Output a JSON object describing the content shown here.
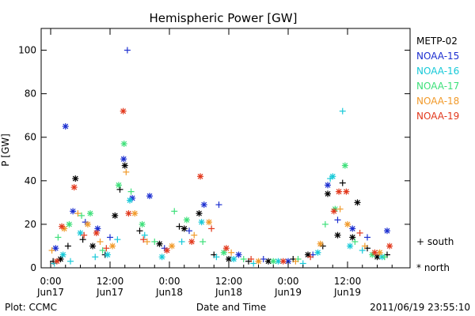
{
  "chart_data": {
    "type": "scatter",
    "title": "Hemispheric Power [GW]",
    "ylabel": "P [GW]",
    "xlabel": "Date and Time",
    "ylim": [
      0,
      110
    ],
    "xlim": [
      "2011-06-17 00:00",
      "2011-06-19 21:00"
    ],
    "yticks": [
      0,
      20,
      40,
      60,
      80,
      100
    ],
    "xticks": [
      {
        "line1": "0:00",
        "line2": "Jun17",
        "t": "2011-06-17 00:00"
      },
      {
        "line1": "12:00",
        "line2": "Jun17",
        "t": "2011-06-17 12:00"
      },
      {
        "line1": "0:00",
        "line2": "Jun18",
        "t": "2011-06-18 00:00"
      },
      {
        "line1": "12:00",
        "line2": "Jun18",
        "t": "2011-06-18 12:00"
      },
      {
        "line1": "0:00",
        "line2": "Jun19",
        "t": "2011-06-19 00:00"
      },
      {
        "line1": "12:00",
        "line2": "Jun19",
        "t": "2011-06-19 12:00"
      }
    ],
    "legend_placement": "right",
    "marker_legend": {
      "south": "+ south",
      "north": "* north"
    },
    "footer_left": "Plot: CCMC",
    "footer_right": "2011/06/19 23:55:10",
    "series": [
      {
        "name": "METP-02",
        "color": "#000000",
        "points": [
          {
            "t": "2011-06-17 00:30",
            "y": 3,
            "m": "+"
          },
          {
            "t": "2011-06-17 02:00",
            "y": 4,
            "m": "*"
          },
          {
            "t": "2011-06-17 03:30",
            "y": 10,
            "m": "+"
          },
          {
            "t": "2011-06-17 05:00",
            "y": 41,
            "m": "*"
          },
          {
            "t": "2011-06-17 06:30",
            "y": 13,
            "m": "+"
          },
          {
            "t": "2011-06-17 08:30",
            "y": 10,
            "m": "*"
          },
          {
            "t": "2011-06-17 11:00",
            "y": 6,
            "m": "+"
          },
          {
            "t": "2011-06-17 13:00",
            "y": 24,
            "m": "*"
          },
          {
            "t": "2011-06-17 14:00",
            "y": 36,
            "m": "+"
          },
          {
            "t": "2011-06-17 15:00",
            "y": 47,
            "m": "*"
          },
          {
            "t": "2011-06-17 18:00",
            "y": 17,
            "m": "+"
          },
          {
            "t": "2011-06-17 22:00",
            "y": 11,
            "m": "*"
          },
          {
            "t": "2011-06-18 02:00",
            "y": 19,
            "m": "+"
          },
          {
            "t": "2011-06-18 03:00",
            "y": 18,
            "m": "*"
          },
          {
            "t": "2011-06-18 06:00",
            "y": 25,
            "m": "*"
          },
          {
            "t": "2011-06-18 09:00",
            "y": 6,
            "m": "+"
          },
          {
            "t": "2011-06-18 12:00",
            "y": 4,
            "m": "*"
          },
          {
            "t": "2011-06-18 16:00",
            "y": 3,
            "m": "+"
          },
          {
            "t": "2011-06-18 20:00",
            "y": 3,
            "m": "*"
          },
          {
            "t": "2011-06-19 01:00",
            "y": 4,
            "m": "+"
          },
          {
            "t": "2011-06-19 04:00",
            "y": 6,
            "m": "*"
          },
          {
            "t": "2011-06-19 07:00",
            "y": 10,
            "m": "+"
          },
          {
            "t": "2011-06-19 08:00",
            "y": 34,
            "m": "*"
          },
          {
            "t": "2011-06-19 10:00",
            "y": 15,
            "m": "*"
          },
          {
            "t": "2011-06-19 11:00",
            "y": 39,
            "m": "+"
          },
          {
            "t": "2011-06-19 13:00",
            "y": 14,
            "m": "*"
          },
          {
            "t": "2011-06-19 14:00",
            "y": 30,
            "m": "*"
          },
          {
            "t": "2011-06-19 16:00",
            "y": 9,
            "m": "+"
          },
          {
            "t": "2011-06-19 18:00",
            "y": 5,
            "m": "*"
          },
          {
            "t": "2011-06-19 20:00",
            "y": 6,
            "m": "+"
          }
        ]
      },
      {
        "name": "NOAA-15",
        "color": "#1c2fd0",
        "points": [
          {
            "t": "2011-06-17 01:00",
            "y": 9,
            "m": "*"
          },
          {
            "t": "2011-06-17 03:00",
            "y": 65,
            "m": "*"
          },
          {
            "t": "2011-06-17 04:30",
            "y": 26,
            "m": "*"
          },
          {
            "t": "2011-06-17 07:00",
            "y": 21,
            "m": "+"
          },
          {
            "t": "2011-06-17 09:30",
            "y": 18,
            "m": "*"
          },
          {
            "t": "2011-06-17 12:00",
            "y": 14,
            "m": "+"
          },
          {
            "t": "2011-06-17 14:45",
            "y": 50,
            "m": "*"
          },
          {
            "t": "2011-06-17 15:30",
            "y": 100,
            "m": "+"
          },
          {
            "t": "2011-06-17 16:30",
            "y": 32,
            "m": "*"
          },
          {
            "t": "2011-06-17 20:00",
            "y": 33,
            "m": "*"
          },
          {
            "t": "2011-06-17 23:00",
            "y": 9,
            "m": "+"
          },
          {
            "t": "2011-06-18 04:00",
            "y": 17,
            "m": "+"
          },
          {
            "t": "2011-06-18 07:00",
            "y": 29,
            "m": "*"
          },
          {
            "t": "2011-06-18 10:00",
            "y": 29,
            "m": "+"
          },
          {
            "t": "2011-06-18 14:00",
            "y": 6,
            "m": "*"
          },
          {
            "t": "2011-06-18 19:00",
            "y": 4,
            "m": "+"
          },
          {
            "t": "2011-06-19 00:00",
            "y": 3,
            "m": "*"
          },
          {
            "t": "2011-06-19 05:00",
            "y": 6,
            "m": "+"
          },
          {
            "t": "2011-06-19 08:00",
            "y": 38,
            "m": "*"
          },
          {
            "t": "2011-06-19 10:00",
            "y": 22,
            "m": "+"
          },
          {
            "t": "2011-06-19 13:00",
            "y": 18,
            "m": "*"
          },
          {
            "t": "2011-06-19 16:00",
            "y": 14,
            "m": "+"
          },
          {
            "t": "2011-06-19 20:00",
            "y": 17,
            "m": "*"
          }
        ]
      },
      {
        "name": "NOAA-16",
        "color": "#17c9d8",
        "points": [
          {
            "t": "2011-06-17 00:45",
            "y": 2,
            "m": "+"
          },
          {
            "t": "2011-06-17 02:30",
            "y": 6,
            "m": "*"
          },
          {
            "t": "2011-06-17 04:00",
            "y": 3,
            "m": "+"
          },
          {
            "t": "2011-06-17 06:00",
            "y": 16,
            "m": "*"
          },
          {
            "t": "2011-06-17 09:00",
            "y": 5,
            "m": "+"
          },
          {
            "t": "2011-06-17 11:30",
            "y": 6,
            "m": "*"
          },
          {
            "t": "2011-06-17 13:30",
            "y": 13,
            "m": "+"
          },
          {
            "t": "2011-06-17 16:00",
            "y": 31,
            "m": "*"
          },
          {
            "t": "2011-06-17 19:00",
            "y": 15,
            "m": "+"
          },
          {
            "t": "2011-06-17 22:30",
            "y": 5,
            "m": "*"
          },
          {
            "t": "2011-06-18 02:30",
            "y": 12,
            "m": "+"
          },
          {
            "t": "2011-06-18 06:30",
            "y": 21,
            "m": "*"
          },
          {
            "t": "2011-06-18 09:30",
            "y": 5,
            "m": "+"
          },
          {
            "t": "2011-06-18 13:00",
            "y": 4,
            "m": "*"
          },
          {
            "t": "2011-06-18 17:00",
            "y": 2,
            "m": "+"
          },
          {
            "t": "2011-06-18 22:00",
            "y": 3,
            "m": "*"
          },
          {
            "t": "2011-06-19 03:00",
            "y": 2,
            "m": "+"
          },
          {
            "t": "2011-06-19 06:00",
            "y": 7,
            "m": "*"
          },
          {
            "t": "2011-06-19 08:30",
            "y": 41,
            "m": "+"
          },
          {
            "t": "2011-06-19 09:00",
            "y": 42,
            "m": "*"
          },
          {
            "t": "2011-06-19 11:00",
            "y": 72,
            "m": "+"
          },
          {
            "t": "2011-06-19 12:30",
            "y": 10,
            "m": "*"
          },
          {
            "t": "2011-06-19 15:00",
            "y": 8,
            "m": "+"
          },
          {
            "t": "2011-06-19 19:00",
            "y": 5,
            "m": "*"
          }
        ]
      },
      {
        "name": "NOAA-17",
        "color": "#3ee07a",
        "points": [
          {
            "t": "2011-06-17 01:30",
            "y": 14,
            "m": "+"
          },
          {
            "t": "2011-06-17 03:45",
            "y": 20,
            "m": "*"
          },
          {
            "t": "2011-06-17 06:15",
            "y": 24,
            "m": "+"
          },
          {
            "t": "2011-06-17 08:00",
            "y": 25,
            "m": "*"
          },
          {
            "t": "2011-06-17 10:30",
            "y": 8,
            "m": "+"
          },
          {
            "t": "2011-06-17 13:45",
            "y": 38,
            "m": "*"
          },
          {
            "t": "2011-06-17 14:50",
            "y": 57,
            "m": "*"
          },
          {
            "t": "2011-06-17 16:15",
            "y": 35,
            "m": "+"
          },
          {
            "t": "2011-06-17 18:30",
            "y": 20,
            "m": "*"
          },
          {
            "t": "2011-06-17 21:00",
            "y": 12,
            "m": "+"
          },
          {
            "t": "2011-06-18 01:00",
            "y": 26,
            "m": "+"
          },
          {
            "t": "2011-06-18 03:30",
            "y": 22,
            "m": "*"
          },
          {
            "t": "2011-06-18 06:45",
            "y": 12,
            "m": "+"
          },
          {
            "t": "2011-06-18 11:00",
            "y": 7,
            "m": "*"
          },
          {
            "t": "2011-06-18 15:00",
            "y": 4,
            "m": "+"
          },
          {
            "t": "2011-06-18 21:00",
            "y": 3,
            "m": "*"
          },
          {
            "t": "2011-06-19 02:00",
            "y": 4,
            "m": "+"
          },
          {
            "t": "2011-06-19 07:30",
            "y": 20,
            "m": "+"
          },
          {
            "t": "2011-06-19 09:30",
            "y": 27,
            "m": "*"
          },
          {
            "t": "2011-06-19 11:30",
            "y": 47,
            "m": "*"
          },
          {
            "t": "2011-06-19 13:30",
            "y": 12,
            "m": "+"
          },
          {
            "t": "2011-06-19 17:00",
            "y": 6,
            "m": "*"
          },
          {
            "t": "2011-06-19 19:30",
            "y": 5,
            "m": "+"
          }
        ]
      },
      {
        "name": "NOAA-18",
        "color": "#f19a2a",
        "points": [
          {
            "t": "2011-06-17 00:15",
            "y": 8,
            "m": "+"
          },
          {
            "t": "2011-06-17 02:45",
            "y": 18,
            "m": "*"
          },
          {
            "t": "2011-06-17 05:30",
            "y": 25,
            "m": "+"
          },
          {
            "t": "2011-06-17 07:30",
            "y": 20,
            "m": "*"
          },
          {
            "t": "2011-06-17 10:00",
            "y": 12,
            "m": "+"
          },
          {
            "t": "2011-06-17 12:30",
            "y": 10,
            "m": "*"
          },
          {
            "t": "2011-06-17 15:15",
            "y": 44,
            "m": "+"
          },
          {
            "t": "2011-06-17 17:00",
            "y": 25,
            "m": "*"
          },
          {
            "t": "2011-06-17 19:30",
            "y": 12,
            "m": "+"
          },
          {
            "t": "2011-06-18 00:30",
            "y": 10,
            "m": "*"
          },
          {
            "t": "2011-06-18 05:00",
            "y": 15,
            "m": "+"
          },
          {
            "t": "2011-06-18 08:00",
            "y": 21,
            "m": "*"
          },
          {
            "t": "2011-06-18 12:30",
            "y": 7,
            "m": "+"
          },
          {
            "t": "2011-06-18 18:00",
            "y": 3,
            "m": "*"
          },
          {
            "t": "2011-06-19 01:30",
            "y": 3,
            "m": "+"
          },
          {
            "t": "2011-06-19 06:30",
            "y": 11,
            "m": "*"
          },
          {
            "t": "2011-06-19 10:30",
            "y": 27,
            "m": "+"
          },
          {
            "t": "2011-06-19 12:00",
            "y": 20,
            "m": "*"
          },
          {
            "t": "2011-06-19 15:30",
            "y": 10,
            "m": "+"
          },
          {
            "t": "2011-06-19 18:30",
            "y": 7,
            "m": "*"
          }
        ]
      },
      {
        "name": "NOAA-19",
        "color": "#e2381c",
        "points": [
          {
            "t": "2011-06-17 01:15",
            "y": 3,
            "m": "*"
          },
          {
            "t": "2011-06-17 02:15",
            "y": 19,
            "m": "*"
          },
          {
            "t": "2011-06-17 04:45",
            "y": 37,
            "m": "*"
          },
          {
            "t": "2011-06-17 06:45",
            "y": 15,
            "m": "+"
          },
          {
            "t": "2011-06-17 09:15",
            "y": 16,
            "m": "*"
          },
          {
            "t": "2011-06-17 11:15",
            "y": 9,
            "m": "+"
          },
          {
            "t": "2011-06-17 14:40",
            "y": 72,
            "m": "*"
          },
          {
            "t": "2011-06-17 15:45",
            "y": 25,
            "m": "*"
          },
          {
            "t": "2011-06-17 18:45",
            "y": 13,
            "m": "+"
          },
          {
            "t": "2011-06-17 23:30",
            "y": 8,
            "m": "*"
          },
          {
            "t": "2011-06-18 04:30",
            "y": 12,
            "m": "*"
          },
          {
            "t": "2011-06-18 06:15",
            "y": 42,
            "m": "*"
          },
          {
            "t": "2011-06-18 08:30",
            "y": 18,
            "m": "+"
          },
          {
            "t": "2011-06-18 11:30",
            "y": 9,
            "m": "*"
          },
          {
            "t": "2011-06-18 16:30",
            "y": 4,
            "m": "+"
          },
          {
            "t": "2011-06-18 23:00",
            "y": 3,
            "m": "*"
          },
          {
            "t": "2011-06-19 04:30",
            "y": 5,
            "m": "+"
          },
          {
            "t": "2011-06-19 09:15",
            "y": 26,
            "m": "*"
          },
          {
            "t": "2011-06-19 10:15",
            "y": 35,
            "m": "*"
          },
          {
            "t": "2011-06-19 11:45",
            "y": 35,
            "m": "*"
          },
          {
            "t": "2011-06-19 14:30",
            "y": 16,
            "m": "+"
          },
          {
            "t": "2011-06-19 17:30",
            "y": 7,
            "m": "*"
          },
          {
            "t": "2011-06-19 20:30",
            "y": 10,
            "m": "*"
          }
        ]
      }
    ]
  }
}
